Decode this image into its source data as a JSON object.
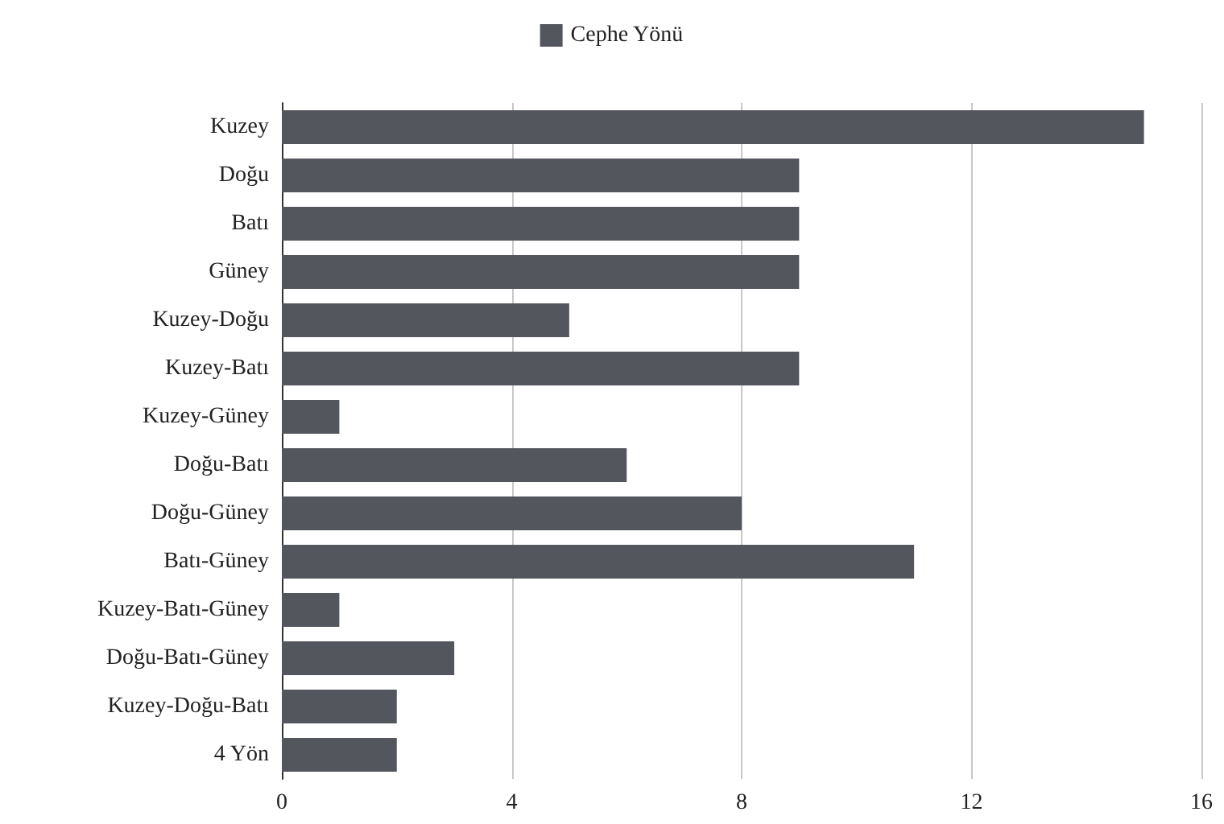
{
  "chart_data": {
    "type": "bar",
    "orientation": "horizontal",
    "categories": [
      "Kuzey",
      "Doğu",
      "Batı",
      "Güney",
      "Kuzey-Doğu",
      "Kuzey-Batı",
      "Kuzey-Güney",
      "Doğu-Batı",
      "Doğu-Güney",
      "Batı-Güney",
      "Kuzey-Batı-Güney",
      "Doğu-Batı-Güney",
      "Kuzey-Doğu-Batı",
      "4 Yön"
    ],
    "series": [
      {
        "name": "Cephe Yönü",
        "color": "#53565c",
        "values": [
          15,
          9,
          9,
          9,
          5,
          9,
          1,
          6,
          8,
          11,
          1,
          3,
          2,
          2
        ]
      }
    ],
    "xlim": [
      0,
      16
    ],
    "xticks": [
      0,
      4,
      8,
      12,
      16
    ],
    "grid": "x",
    "legend": "top"
  }
}
